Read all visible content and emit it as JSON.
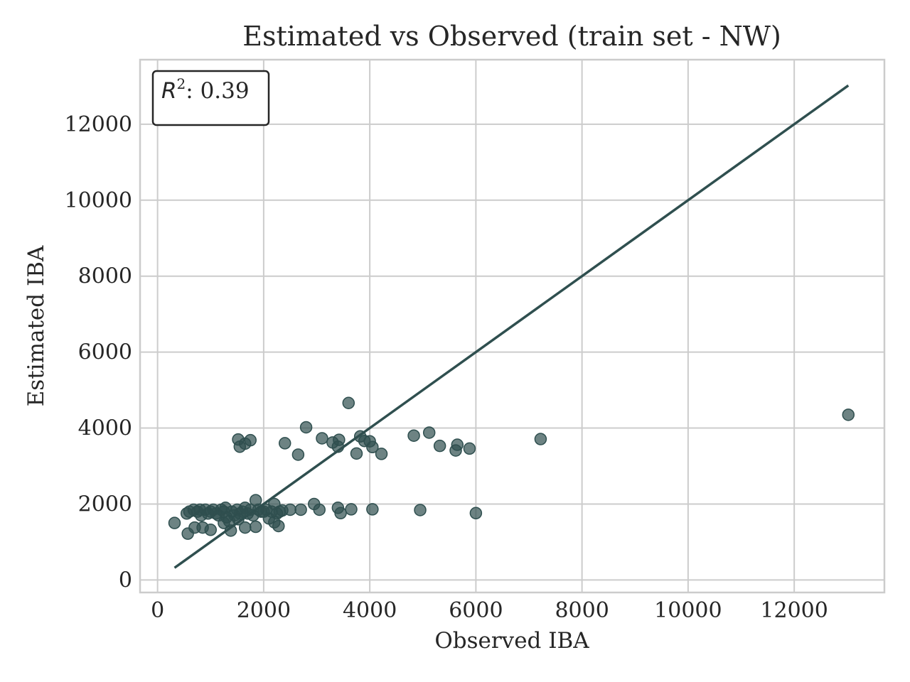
{
  "chart_data": {
    "type": "scatter",
    "title": "Estimated vs Observed (train set - NW)",
    "xlabel": "Observed IBA",
    "ylabel": "Estimated IBA",
    "xlim": [
      -330,
      13700
    ],
    "ylim": [
      -330,
      13700
    ],
    "xticks": [
      0,
      2000,
      4000,
      6000,
      8000,
      10000,
      12000
    ],
    "yticks": [
      0,
      2000,
      4000,
      6000,
      8000,
      10000,
      12000
    ],
    "grid": true,
    "annotation": {
      "var": "R",
      "sup": "2",
      "text": ": 0.39",
      "value": 0.39,
      "position": "top-left"
    },
    "reference_line": {
      "x": [
        320,
        13020
      ],
      "y": [
        320,
        13020
      ]
    },
    "colors": {
      "points": "#2f4f4f",
      "line": "#2f4f4f"
    },
    "points": [
      [
        320,
        1500
      ],
      [
        550,
        1750
      ],
      [
        600,
        1800
      ],
      [
        570,
        1220
      ],
      [
        680,
        1850
      ],
      [
        700,
        1380
      ],
      [
        750,
        1800
      ],
      [
        800,
        1850
      ],
      [
        820,
        1700
      ],
      [
        850,
        1380
      ],
      [
        900,
        1850
      ],
      [
        950,
        1750
      ],
      [
        1000,
        1800
      ],
      [
        1000,
        1320
      ],
      [
        1050,
        1850
      ],
      [
        1100,
        1750
      ],
      [
        1150,
        1700
      ],
      [
        1200,
        1850
      ],
      [
        1250,
        1800
      ],
      [
        1250,
        1500
      ],
      [
        1280,
        1900
      ],
      [
        1300,
        1650
      ],
      [
        1350,
        1550
      ],
      [
        1380,
        1300
      ],
      [
        1400,
        1800
      ],
      [
        1450,
        1700
      ],
      [
        1500,
        1850
      ],
      [
        1520,
        1600
      ],
      [
        1550,
        1750
      ],
      [
        1600,
        1800
      ],
      [
        1650,
        1900
      ],
      [
        1650,
        1380
      ],
      [
        1700,
        1750
      ],
      [
        1750,
        1850
      ],
      [
        1800,
        1700
      ],
      [
        1850,
        2100
      ],
      [
        1850,
        1400
      ],
      [
        1900,
        1850
      ],
      [
        1950,
        1800
      ],
      [
        2000,
        1800
      ],
      [
        2050,
        1850
      ],
      [
        2100,
        1620
      ],
      [
        2150,
        1800
      ],
      [
        2200,
        2000
      ],
      [
        2200,
        1520
      ],
      [
        2250,
        1750
      ],
      [
        2300,
        1800
      ],
      [
        2280,
        1420
      ],
      [
        2350,
        1830
      ],
      [
        2500,
        1850
      ],
      [
        2700,
        1850
      ],
      [
        2950,
        2000
      ],
      [
        3050,
        1850
      ],
      [
        3400,
        1900
      ],
      [
        3450,
        1760
      ],
      [
        3650,
        1860
      ],
      [
        4050,
        1860
      ],
      [
        4950,
        1840
      ],
      [
        6000,
        1760
      ],
      [
        1520,
        3700
      ],
      [
        1550,
        3510
      ],
      [
        1650,
        3590
      ],
      [
        1750,
        3680
      ],
      [
        2400,
        3600
      ],
      [
        2650,
        3300
      ],
      [
        2800,
        4020
      ],
      [
        3100,
        3730
      ],
      [
        3300,
        3620
      ],
      [
        3400,
        3510
      ],
      [
        3420,
        3690
      ],
      [
        3600,
        4660
      ],
      [
        3750,
        3330
      ],
      [
        3820,
        3780
      ],
      [
        3900,
        3660
      ],
      [
        4000,
        3650
      ],
      [
        4050,
        3500
      ],
      [
        4220,
        3320
      ],
      [
        4830,
        3800
      ],
      [
        5120,
        3880
      ],
      [
        5320,
        3530
      ],
      [
        5620,
        3410
      ],
      [
        5650,
        3560
      ],
      [
        5880,
        3460
      ],
      [
        7220,
        3710
      ],
      [
        13020,
        4350
      ]
    ]
  }
}
